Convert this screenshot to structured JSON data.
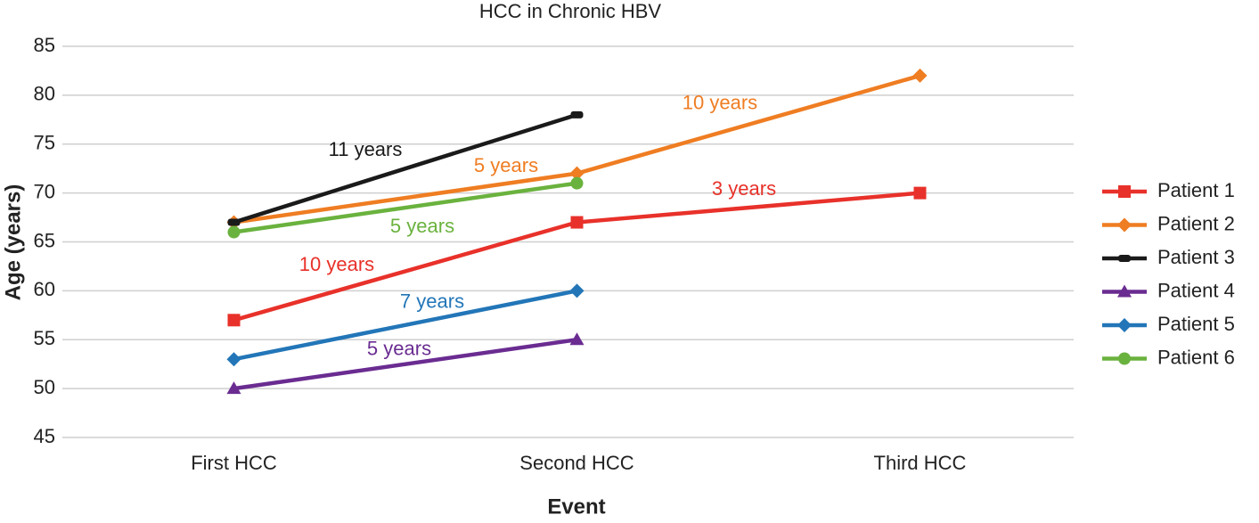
{
  "chart_data": {
    "type": "line",
    "title": "HCC in Chronic HBV",
    "x_label": "Event",
    "y_label": "Age (years)",
    "categories": [
      "First HCC",
      "Second HCC",
      "Third HCC"
    ],
    "ylim": [
      45,
      85
    ],
    "yticks": [
      45,
      50,
      55,
      60,
      65,
      70,
      75,
      80,
      85
    ],
    "grid": true,
    "legend": "right",
    "series": [
      {
        "name": "Patient 1",
        "color": "#e8312a",
        "marker": "square",
        "values": [
          57,
          67,
          70
        ],
        "segment_labels": [
          "10 years",
          "3 years"
        ]
      },
      {
        "name": "Patient 2",
        "color": "#ef7d22",
        "marker": "diamond",
        "values": [
          67,
          72,
          82
        ],
        "segment_labels": [
          "5 years",
          "10 years"
        ]
      },
      {
        "name": "Patient 3",
        "color": "#1a1a1a",
        "marker": "dash",
        "values": [
          67,
          78,
          null
        ],
        "segment_labels": [
          "11 years"
        ]
      },
      {
        "name": "Patient 4",
        "color": "#6a2c91",
        "marker": "triangle",
        "values": [
          50,
          55,
          null
        ],
        "segment_labels": [
          "5 years"
        ]
      },
      {
        "name": "Patient 5",
        "color": "#2276b8",
        "marker": "diamond",
        "values": [
          53,
          60,
          null
        ],
        "segment_labels": [
          "7 years"
        ]
      },
      {
        "name": "Patient 6",
        "color": "#6ab23e",
        "marker": "circle",
        "values": [
          66,
          71,
          null
        ],
        "segment_labels": [
          "5 years"
        ]
      }
    ]
  }
}
